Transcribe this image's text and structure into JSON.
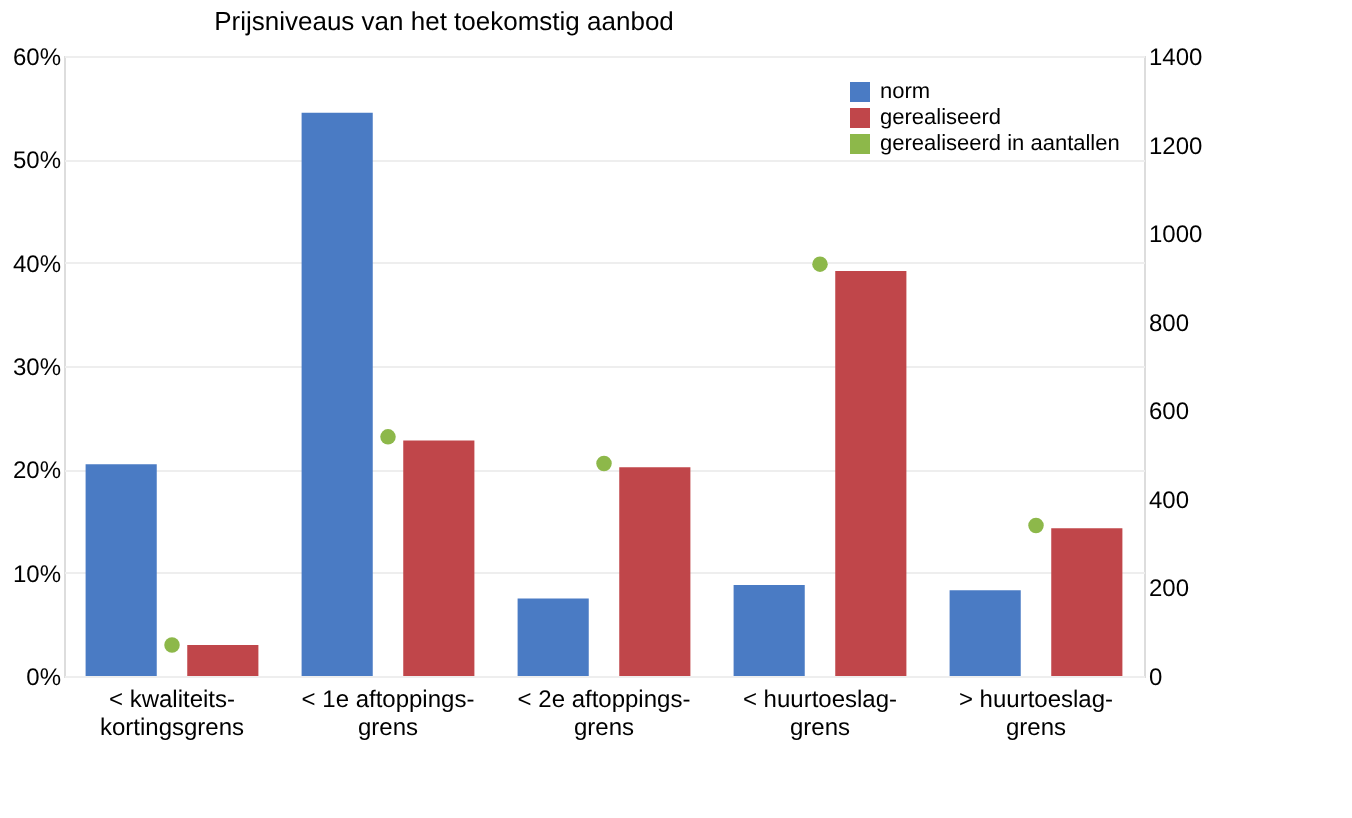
{
  "chart_data": {
    "type": "bar",
    "title": "Prijsniveaus van het toekomstig aanbod",
    "categories": [
      "< kwaliteits-\nkortingsgrens",
      "< 1e aftoppings-\ngrens",
      "< 2e aftoppings-\ngrens",
      "< huurtoeslag-\ngrens",
      "> huurtoeslag-\ngrens"
    ],
    "series": [
      {
        "name": "norm",
        "color": "#4a7bc4",
        "values": [
          20.5,
          54.5,
          7.5,
          8.8,
          8.3
        ]
      },
      {
        "name": "gerealiseerd",
        "color": "#c0464a",
        "values": [
          3.0,
          22.8,
          20.2,
          39.2,
          14.3
        ]
      },
      {
        "name": "gerealiseerd in aantallen",
        "color": "#8db84a",
        "type": "scatter",
        "axis": "y2",
        "marker": "circle",
        "values": [
          70,
          540,
          480,
          930,
          340
        ]
      }
    ],
    "ylim": [
      0,
      60
    ],
    "yticks": [
      {
        "value": 0,
        "label": "0%"
      },
      {
        "value": 10,
        "label": "10%"
      },
      {
        "value": 20,
        "label": "20%"
      },
      {
        "value": 30,
        "label": "30%"
      },
      {
        "value": 40,
        "label": "40%"
      },
      {
        "value": 50,
        "label": "50%"
      },
      {
        "value": 60,
        "label": "60%"
      }
    ],
    "y2lim": [
      0,
      1400
    ],
    "y2ticks": [
      0,
      200,
      400,
      600,
      800,
      1000,
      1200,
      1400
    ],
    "grid": "y",
    "legend": "top right"
  }
}
